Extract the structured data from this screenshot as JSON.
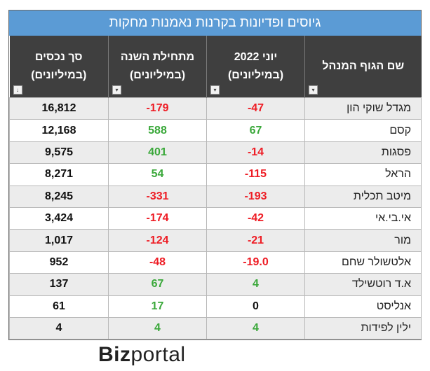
{
  "title": "גיוסים ופדיונות בקרנות נאמנות מחקות",
  "headers": {
    "manager": "שם הגוף המנהל",
    "june_l1": "יוני 2022",
    "june_l2": "(במיליונים)",
    "ytd_l1": "מתחילת השנה",
    "ytd_l2": "(במיליונים)",
    "assets_l1": "סך נכסים",
    "assets_l2": "(במיליונים)"
  },
  "rows": [
    {
      "name": "מגדל שוקי הון",
      "june": "-47",
      "ytd": "-179",
      "assets": "16,812"
    },
    {
      "name": "קסם",
      "june": "67",
      "ytd": "588",
      "assets": "12,168"
    },
    {
      "name": "פסגות",
      "june": "-14",
      "ytd": "401",
      "assets": "9,575"
    },
    {
      "name": "הראל",
      "june": "-115",
      "ytd": "54",
      "assets": "8,271"
    },
    {
      "name": "מיטב תכלית",
      "june": "-193",
      "ytd": "-331",
      "assets": "8,245"
    },
    {
      "name": "אי.בי.אי",
      "june": "-42",
      "ytd": "-174",
      "assets": "3,424"
    },
    {
      "name": "מור",
      "june": "-21",
      "ytd": "-124",
      "assets": "1,017"
    },
    {
      "name": "אלטשולר שחם",
      "june": "-19.0",
      "ytd": "-48",
      "assets": "952"
    },
    {
      "name": "א.ד רוטשילד",
      "june": "4",
      "ytd": "67",
      "assets": "137"
    },
    {
      "name": "אנליסט",
      "june": "0",
      "ytd": "17",
      "assets": "61"
    },
    {
      "name": "ילין לפידות",
      "june": "4",
      "ytd": "4",
      "assets": "4"
    }
  ],
  "colors": {
    "negative": "#ee1c24",
    "positive": "#3aa83a",
    "title_bg": "#5b9bd5",
    "header_bg": "#3f3f3f"
  },
  "logo": {
    "bold": "Biz",
    "rest": "portal"
  }
}
